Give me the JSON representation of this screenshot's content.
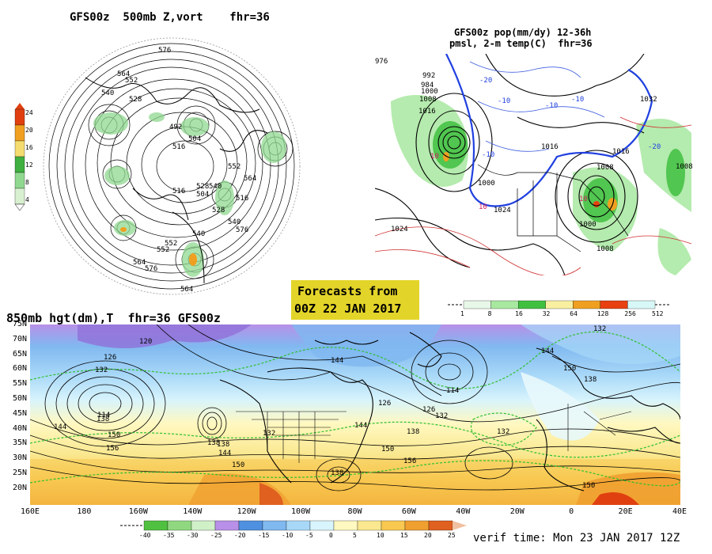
{
  "panels": {
    "top_left": {
      "title": "GFS00z  500mb Z,vort    fhr=36",
      "colorbar": {
        "ticks": [
          "24",
          "20",
          "16",
          "12",
          "8",
          "4"
        ],
        "colors": [
          "#e04010",
          "#f0a020",
          "#f4dc70",
          "#40b040",
          "#90d890",
          "#d8f0d0"
        ]
      },
      "contour_labels": [
        "576",
        "564",
        "552",
        "540",
        "528",
        "516",
        "504",
        "492",
        "528",
        "540",
        "552",
        "564",
        "576",
        "516",
        "504",
        "540",
        "552",
        "564",
        "576",
        "516",
        "528",
        "540",
        "552",
        "564"
      ]
    },
    "top_right": {
      "title_line1": "GFS00z pop(mm/dy) 12-36h",
      "title_line2": "pmsl, 2-m temp(C)  fhr=36",
      "colorbar": {
        "ticks": [
          "1",
          "8",
          "16",
          "32",
          "64",
          "128",
          "256",
          "512"
        ],
        "colors": [
          "#e8f8e8",
          "#a8e8a0",
          "#40c040",
          "#f8f0a0",
          "#f0a020",
          "#e84010",
          "#d8f8f8"
        ]
      },
      "isobar_labels": [
        "1000",
        "1008",
        "1016",
        "1024",
        "992",
        "984",
        "976",
        "1032",
        "1008",
        "1016",
        "1000",
        "1008",
        "1016",
        "1024",
        "1000",
        "1008"
      ],
      "temp_labels": [
        "-20",
        "-10",
        "-10",
        "-10",
        "-20",
        "10",
        "10",
        "10",
        "-10"
      ]
    },
    "forecast_box": {
      "line1": "Forecasts from",
      "line2": "00Z 22 JAN 2017"
    },
    "bottom": {
      "title": "850mb hgt(dm),T  fhr=36 GFS00z",
      "lat_labels": [
        "75N",
        "70N",
        "65N",
        "60N",
        "55N",
        "50N",
        "45N",
        "40N",
        "35N",
        "30N",
        "25N",
        "20N"
      ],
      "lon_labels": [
        "160E",
        "180",
        "160W",
        "140W",
        "120W",
        "100W",
        "80W",
        "60W",
        "40W",
        "20W",
        "0",
        "20E",
        "40E"
      ],
      "height_labels": [
        "120",
        "126",
        "132",
        "138",
        "144",
        "150",
        "156",
        "114",
        "138",
        "144",
        "150",
        "138",
        "132",
        "144",
        "126",
        "114",
        "126",
        "132",
        "138",
        "144",
        "150",
        "156",
        "138",
        "132",
        "144",
        "150",
        "132",
        "138",
        "150"
      ],
      "colorbar": {
        "ticks": [
          "-40",
          "-35",
          "-30",
          "-25",
          "-20",
          "-15",
          "-10",
          "-5",
          "0",
          "5",
          "10",
          "15",
          "20",
          "25"
        ],
        "colors": [
          "#50c040",
          "#90d880",
          "#d0f0c8",
          "#b890e8",
          "#5090e0",
          "#80b8f0",
          "#a8d8f8",
          "#d8f4fc",
          "#fff8c0",
          "#fae890",
          "#f8c850",
          "#f0a030",
          "#e06020"
        ]
      },
      "verif": "verif time: Mon 23 JAN 2017 12Z"
    }
  }
}
